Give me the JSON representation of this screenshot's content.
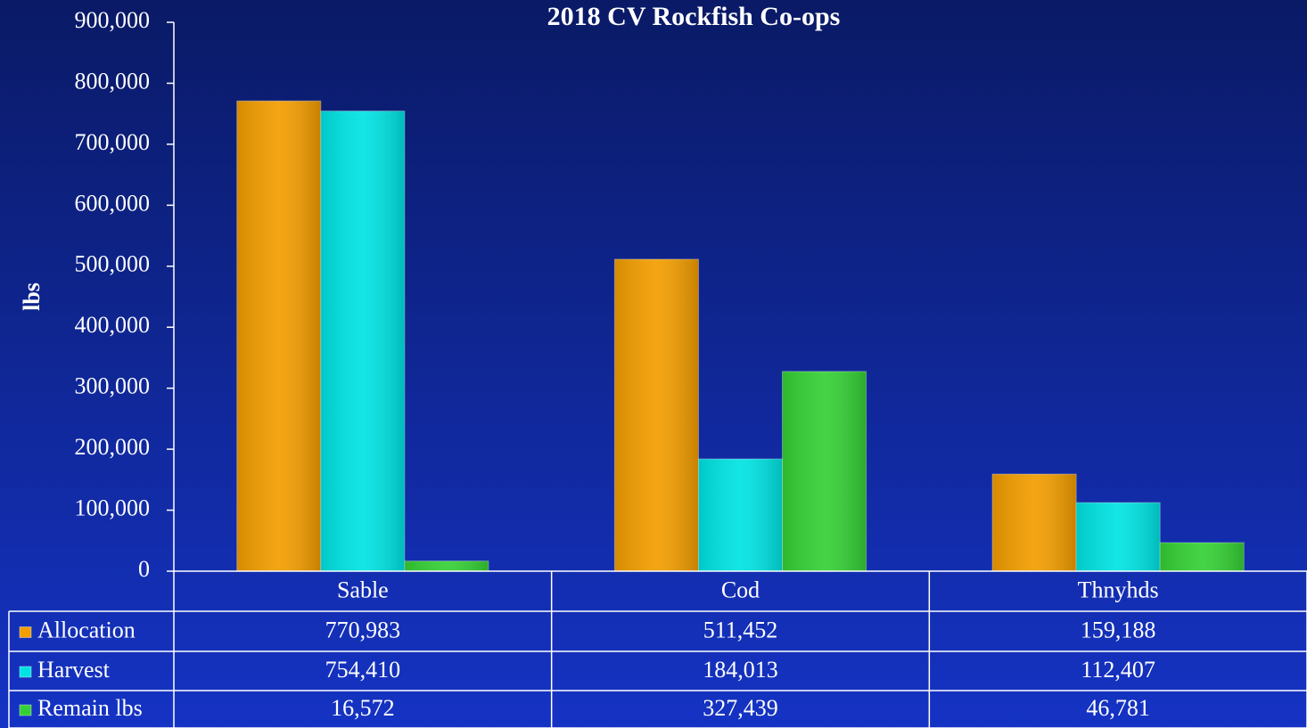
{
  "chart_data": {
    "type": "bar",
    "title": "2018 CV Rockfish Co-ops",
    "y_label": "lbs",
    "categories": [
      "Sable",
      "Cod",
      "Thnyhds"
    ],
    "series": [
      {
        "name": "Allocation",
        "color": "#f29d00",
        "values": [
          770983,
          511452,
          159188
        ],
        "value_labels": [
          "770,983",
          "511,452",
          "159,188"
        ]
      },
      {
        "name": "Harvest",
        "color": "#00e3e3",
        "values": [
          754410,
          184013,
          112407
        ],
        "value_labels": [
          "754,410",
          "184,013",
          "112,407"
        ]
      },
      {
        "name": "Remain lbs",
        "color": "#35d035",
        "values": [
          16572,
          327439,
          46781
        ],
        "value_labels": [
          "16,572",
          "327,439",
          "46,781"
        ]
      }
    ],
    "ylim": [
      0,
      900000
    ],
    "yticks": [
      0,
      {
        "value": 100000,
        "label": "100,000"
      },
      {
        "value": 200000,
        "label": "200,000"
      },
      {
        "value": 300000,
        "label": "300,000"
      },
      {
        "value": 400000,
        "label": "400,000"
      },
      {
        "value": 500000,
        "label": "500,000"
      },
      {
        "value": 600000,
        "label": "600,000"
      },
      {
        "value": 700000,
        "label": "700,000"
      },
      {
        "value": 800000,
        "label": "800,000"
      },
      {
        "value": 900000,
        "label": "900,000"
      }
    ]
  }
}
